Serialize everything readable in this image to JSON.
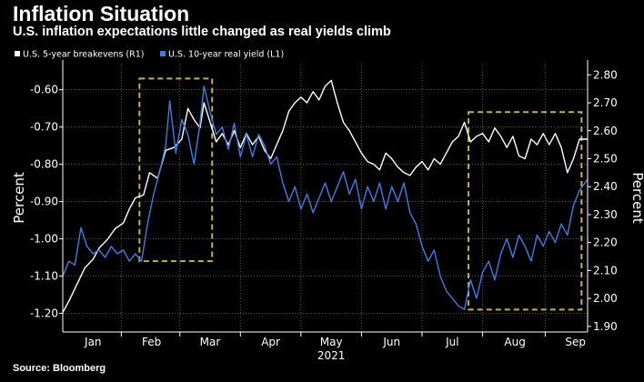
{
  "header": {
    "title": "Inflation Situation",
    "subtitle": "U.S. inflation expectations little changed as real yields climb"
  },
  "footer": {
    "source": "Source: Bloomberg"
  },
  "colors": {
    "background": "#000000",
    "breakevens_line": "#ffffff",
    "real_yield_line": "#3d7ee6",
    "highlight_box": "#c8b23a",
    "grid": "#555555"
  },
  "chart_data": {
    "type": "line",
    "title": "Inflation Situation",
    "subtitle": "U.S. inflation expectations little changed as real yields climb",
    "xlabel": "2021",
    "ylabel_left": "Percent",
    "ylabel_right": "Percent",
    "x_range": [
      0,
      260
    ],
    "ylim_left": [
      -1.25,
      -0.53
    ],
    "ylim_right": [
      1.88,
      2.84
    ],
    "yticks_left": [
      "-0.60",
      "-0.70",
      "-0.80",
      "-0.90",
      "-1.00",
      "-1.10",
      "-1.20"
    ],
    "yticks_left_values": [
      -0.6,
      -0.7,
      -0.8,
      -0.9,
      -1.0,
      -1.1,
      -1.2
    ],
    "yticks_right": [
      "2.80",
      "2.70",
      "2.60",
      "2.50",
      "2.40",
      "2.30",
      "2.20",
      "2.10",
      "2.00",
      "1.90"
    ],
    "yticks_right_values": [
      2.8,
      2.7,
      2.6,
      2.5,
      2.4,
      2.3,
      2.2,
      2.1,
      2.0,
      1.9
    ],
    "x_ticks": [
      {
        "label": "Jan",
        "pos": 15
      },
      {
        "label": "Feb",
        "pos": 44
      },
      {
        "label": "Mar",
        "pos": 73
      },
      {
        "label": "Apr",
        "pos": 103
      },
      {
        "label": "May",
        "pos": 133
      },
      {
        "label": "Jun",
        "pos": 163
      },
      {
        "label": "Jul",
        "pos": 193
      },
      {
        "label": "Aug",
        "pos": 224
      },
      {
        "label": "Sep",
        "pos": 254
      }
    ],
    "x_boundaries": [
      29,
      58,
      88,
      118,
      148,
      178,
      208,
      239
    ],
    "legend": [
      {
        "label": "U.S. 5-year breakevens (R1)",
        "series": "breakevens"
      },
      {
        "label": "U.S. 10-year real yield (L1)",
        "series": "real_yield"
      }
    ],
    "highlights": [
      {
        "x0": 38,
        "x1": 74,
        "y0_left": -0.57,
        "y1_left": -1.06
      },
      {
        "x0": 201,
        "x1": 257,
        "y0_left": -0.66,
        "y1_left": -1.19
      }
    ],
    "series": [
      {
        "name": "U.S. 5-year breakevens (R1)",
        "axis": "right",
        "points": [
          [
            0,
            1.95
          ],
          [
            3,
            1.99
          ],
          [
            7,
            2.05
          ],
          [
            11,
            2.11
          ],
          [
            15,
            2.14
          ],
          [
            18,
            2.18
          ],
          [
            22,
            2.21
          ],
          [
            26,
            2.25
          ],
          [
            30,
            2.27
          ],
          [
            33,
            2.32
          ],
          [
            36,
            2.36
          ],
          [
            40,
            2.37
          ],
          [
            43,
            2.45
          ],
          [
            47,
            2.43
          ],
          [
            51,
            2.53
          ],
          [
            55,
            2.54
          ],
          [
            59,
            2.57
          ],
          [
            62,
            2.68
          ],
          [
            65,
            2.64
          ],
          [
            68,
            2.61
          ],
          [
            70,
            2.7
          ],
          [
            73,
            2.63
          ],
          [
            76,
            2.56
          ],
          [
            79,
            2.59
          ],
          [
            82,
            2.55
          ],
          [
            85,
            2.6
          ],
          [
            88,
            2.54
          ],
          [
            91,
            2.59
          ],
          [
            94,
            2.55
          ],
          [
            97,
            2.58
          ],
          [
            100,
            2.53
          ],
          [
            103,
            2.5
          ],
          [
            106,
            2.55
          ],
          [
            109,
            2.6
          ],
          [
            112,
            2.67
          ],
          [
            115,
            2.7
          ],
          [
            118,
            2.72
          ],
          [
            121,
            2.7
          ],
          [
            124,
            2.74
          ],
          [
            127,
            2.71
          ],
          [
            130,
            2.76
          ],
          [
            133,
            2.78
          ],
          [
            136,
            2.7
          ],
          [
            139,
            2.63
          ],
          [
            142,
            2.6
          ],
          [
            145,
            2.56
          ],
          [
            148,
            2.52
          ],
          [
            151,
            2.49
          ],
          [
            154,
            2.48
          ],
          [
            157,
            2.46
          ],
          [
            160,
            2.52
          ],
          [
            163,
            2.5
          ],
          [
            166,
            2.47
          ],
          [
            169,
            2.45
          ],
          [
            172,
            2.44
          ],
          [
            175,
            2.47
          ],
          [
            178,
            2.49
          ],
          [
            181,
            2.46
          ],
          [
            184,
            2.5
          ],
          [
            187,
            2.48
          ],
          [
            190,
            2.52
          ],
          [
            193,
            2.56
          ],
          [
            196,
            2.58
          ],
          [
            199,
            2.63
          ],
          [
            202,
            2.56
          ],
          [
            205,
            2.58
          ],
          [
            208,
            2.59
          ],
          [
            211,
            2.56
          ],
          [
            214,
            2.61
          ],
          [
            217,
            2.58
          ],
          [
            220,
            2.54
          ],
          [
            223,
            2.58
          ],
          [
            226,
            2.51
          ],
          [
            229,
            2.5
          ],
          [
            232,
            2.57
          ],
          [
            235,
            2.55
          ],
          [
            238,
            2.59
          ],
          [
            241,
            2.55
          ],
          [
            244,
            2.59
          ],
          [
            247,
            2.54
          ],
          [
            250,
            2.45
          ],
          [
            253,
            2.5
          ],
          [
            256,
            2.57
          ],
          [
            260,
            2.57
          ]
        ]
      },
      {
        "name": "U.S. 10-year real yield (L1)",
        "axis": "left",
        "points": [
          [
            0,
            -1.1
          ],
          [
            3,
            -1.06
          ],
          [
            6,
            -1.07
          ],
          [
            9,
            -0.97
          ],
          [
            12,
            -1.02
          ],
          [
            15,
            -1.04
          ],
          [
            18,
            -1.03
          ],
          [
            21,
            -1.05
          ],
          [
            24,
            -1.02
          ],
          [
            27,
            -1.04
          ],
          [
            30,
            -1.03
          ],
          [
            33,
            -1.06
          ],
          [
            36,
            -1.04
          ],
          [
            39,
            -1.06
          ],
          [
            42,
            -0.96
          ],
          [
            45,
            -0.88
          ],
          [
            48,
            -0.82
          ],
          [
            51,
            -0.75
          ],
          [
            53,
            -0.63
          ],
          [
            56,
            -0.77
          ],
          [
            59,
            -0.68
          ],
          [
            62,
            -0.72
          ],
          [
            65,
            -0.8
          ],
          [
            68,
            -0.69
          ],
          [
            70,
            -0.59
          ],
          [
            73,
            -0.66
          ],
          [
            76,
            -0.72
          ],
          [
            79,
            -0.7
          ],
          [
            82,
            -0.76
          ],
          [
            85,
            -0.69
          ],
          [
            88,
            -0.78
          ],
          [
            91,
            -0.72
          ],
          [
            94,
            -0.78
          ],
          [
            97,
            -0.72
          ],
          [
            100,
            -0.75
          ],
          [
            103,
            -0.8
          ],
          [
            106,
            -0.78
          ],
          [
            109,
            -0.85
          ],
          [
            112,
            -0.9
          ],
          [
            115,
            -0.86
          ],
          [
            118,
            -0.92
          ],
          [
            121,
            -0.88
          ],
          [
            124,
            -0.93
          ],
          [
            127,
            -0.89
          ],
          [
            130,
            -0.85
          ],
          [
            133,
            -0.9
          ],
          [
            136,
            -0.86
          ],
          [
            139,
            -0.82
          ],
          [
            142,
            -0.88
          ],
          [
            145,
            -0.84
          ],
          [
            148,
            -0.92
          ],
          [
            151,
            -0.86
          ],
          [
            154,
            -0.9
          ],
          [
            157,
            -0.85
          ],
          [
            160,
            -0.92
          ],
          [
            163,
            -0.86
          ],
          [
            166,
            -0.9
          ],
          [
            169,
            -0.85
          ],
          [
            172,
            -0.93
          ],
          [
            175,
            -0.96
          ],
          [
            178,
            -1.02
          ],
          [
            181,
            -1.06
          ],
          [
            184,
            -1.03
          ],
          [
            187,
            -1.1
          ],
          [
            190,
            -1.14
          ],
          [
            193,
            -1.16
          ],
          [
            196,
            -1.18
          ],
          [
            199,
            -1.19
          ],
          [
            202,
            -1.11
          ],
          [
            205,
            -1.16
          ],
          [
            208,
            -1.09
          ],
          [
            211,
            -1.06
          ],
          [
            214,
            -1.11
          ],
          [
            217,
            -1.04
          ],
          [
            220,
            -1.0
          ],
          [
            223,
            -1.05
          ],
          [
            226,
            -0.99
          ],
          [
            229,
            -1.02
          ],
          [
            232,
            -1.06
          ],
          [
            235,
            -0.99
          ],
          [
            238,
            -1.02
          ],
          [
            241,
            -0.98
          ],
          [
            244,
            -1.01
          ],
          [
            247,
            -0.96
          ],
          [
            250,
            -0.99
          ],
          [
            253,
            -0.91
          ],
          [
            256,
            -0.87
          ],
          [
            260,
            -0.84
          ]
        ]
      }
    ]
  }
}
